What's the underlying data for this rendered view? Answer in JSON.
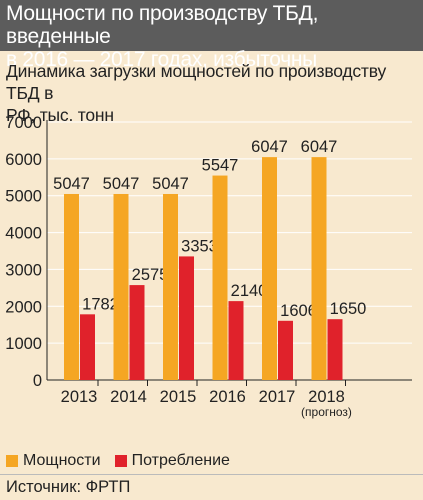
{
  "header": {
    "title_line1": "Мощности по производству ТБД, введенные",
    "title_line2": "в 2016 — 2017 годах, избыточны"
  },
  "subtitle": {
    "line1": "Динамика загрузки мощностей по производству ТБД в",
    "line2": "РФ, тыс. тонн"
  },
  "source": "Источник: ФРТП",
  "colors": {
    "capacity": "#f5a623",
    "consumption": "#e0222b",
    "background": "#f8e9cf",
    "header": "#5c5c5c"
  },
  "chart_data": {
    "type": "bar",
    "categories": [
      "2013",
      "2014",
      "2015",
      "2016",
      "2017",
      "2018"
    ],
    "category_notes": [
      "",
      "",
      "",
      "",
      "",
      "(прогноз)"
    ],
    "series": [
      {
        "name": "Мощности",
        "values": [
          5047,
          5047,
          5047,
          5547,
          6047,
          6047
        ]
      },
      {
        "name": "Потребление",
        "values": [
          1782,
          2575,
          3353,
          2140,
          1606,
          1650
        ]
      }
    ],
    "ylim": [
      0,
      7000
    ],
    "yticks": [
      0,
      1000,
      2000,
      3000,
      4000,
      5000,
      6000,
      7000
    ],
    "grid": true,
    "legend": "bottom-left"
  }
}
